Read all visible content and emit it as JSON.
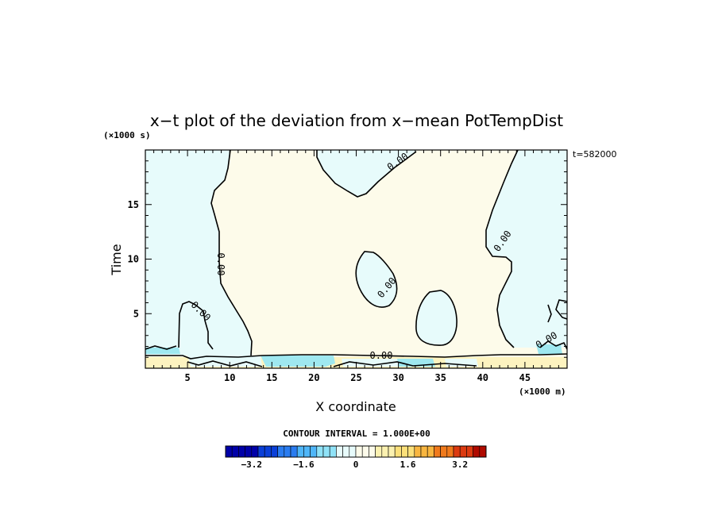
{
  "chart_data": {
    "type": "contour",
    "title": "x−t plot of the deviation from x−mean PotTempDist",
    "xlabel": "X coordinate",
    "ylabel": "Time",
    "x_unit": "(×1000 m)",
    "y_unit": "(×1000 s)",
    "time_stamp": "t=582000",
    "xlim": [
      0,
      50
    ],
    "ylim": [
      0,
      20
    ],
    "x_ticks": [
      5,
      10,
      15,
      20,
      25,
      30,
      35,
      40,
      45
    ],
    "y_ticks": [
      5,
      10,
      15
    ],
    "contour_interval_text": "CONTOUR INTERVAL = 1.000E+00",
    "contour_label": "0.00",
    "colorbar": {
      "min": -4.0,
      "max": 4.0,
      "step": 0.2,
      "tick_values": [
        -3.2,
        -1.6,
        0,
        1.6,
        3.2
      ],
      "tick_labels": [
        "−3.2",
        "−1.6",
        "0",
        "1.6",
        "3.2"
      ]
    },
    "colors": {
      "background_field": "#fdfbea",
      "negative_region": "#e7fbfb",
      "strong_negative": "#9fe8f0",
      "positive_band": "#fdf3c0"
    }
  }
}
